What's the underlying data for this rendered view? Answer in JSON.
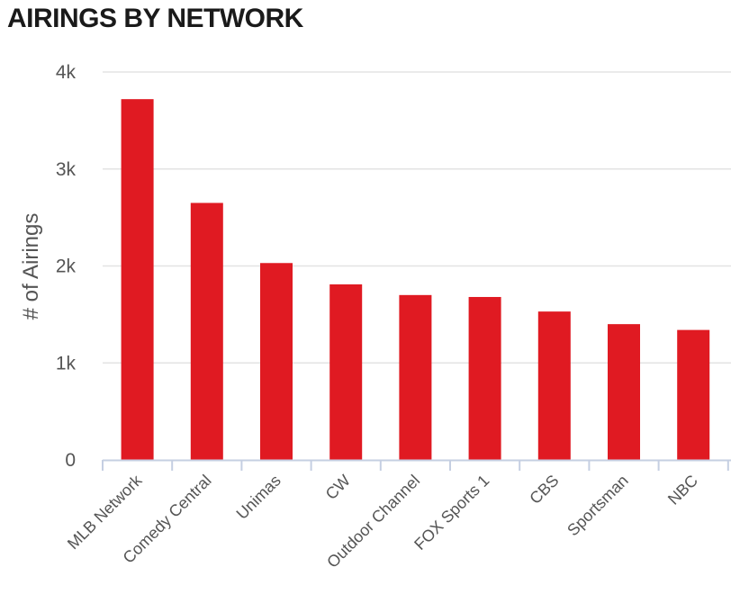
{
  "chart_data": {
    "type": "bar",
    "title": "AIRINGS BY NETWORK",
    "xlabel": "",
    "ylabel": "# of Airings",
    "categories": [
      "MLB Network",
      "Comedy Central",
      "Unimas",
      "CW",
      "Outdoor Channel",
      "FOX Sports 1",
      "CBS",
      "Sportsman",
      "NBC"
    ],
    "values": [
      3720,
      2650,
      2030,
      1810,
      1700,
      1680,
      1530,
      1400,
      1340
    ],
    "ylim": [
      0,
      4000
    ],
    "yticks": [
      0,
      1000,
      2000,
      3000,
      4000
    ],
    "ytick_labels": [
      "0",
      "1k",
      "2k",
      "3k",
      "4k"
    ],
    "grid": true,
    "legend": "none",
    "bar_color": "#e01a22"
  }
}
